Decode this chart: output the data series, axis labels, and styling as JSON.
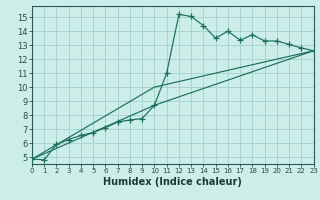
{
  "xlabel": "Humidex (Indice chaleur)",
  "bg_color": "#cceee8",
  "grid_color": "#aad4ce",
  "line_color": "#1a6e62",
  "xlim": [
    0,
    23
  ],
  "ylim": [
    4.5,
    15.8
  ],
  "xticks": [
    0,
    1,
    2,
    3,
    4,
    5,
    6,
    7,
    8,
    9,
    10,
    11,
    12,
    13,
    14,
    15,
    16,
    17,
    18,
    19,
    20,
    21,
    22,
    23
  ],
  "yticks": [
    5,
    6,
    7,
    8,
    9,
    10,
    11,
    12,
    13,
    14,
    15
  ],
  "series1_x": [
    0,
    1,
    2,
    3,
    4,
    5,
    6,
    7,
    8,
    9,
    10,
    11,
    12,
    13,
    14,
    15,
    16,
    17,
    18,
    19,
    20,
    21,
    22,
    23
  ],
  "series1_y": [
    4.85,
    4.8,
    5.9,
    6.25,
    6.55,
    6.75,
    7.1,
    7.5,
    7.65,
    7.75,
    8.7,
    11.0,
    15.2,
    15.05,
    14.4,
    13.5,
    14.0,
    13.35,
    13.75,
    13.3,
    13.3,
    13.05,
    12.8,
    12.6
  ],
  "series2_x": [
    0,
    10,
    23
  ],
  "series2_y": [
    4.85,
    10.0,
    12.6
  ],
  "series3_x": [
    0,
    10,
    23
  ],
  "series3_y": [
    4.85,
    8.7,
    12.6
  ],
  "xlabel_fontsize": 7,
  "ytick_fontsize": 6,
  "xtick_fontsize": 5
}
